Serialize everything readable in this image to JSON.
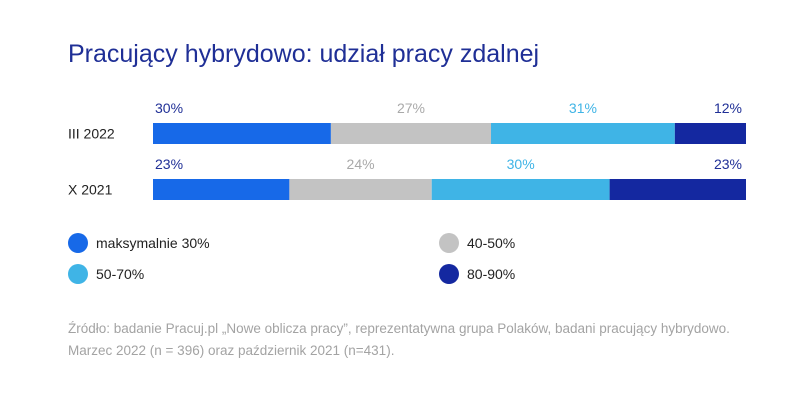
{
  "chart_data": {
    "type": "bar",
    "orientation": "horizontal",
    "stacked": true,
    "title": "Pracujący hybrydowo: udział pracy zdalnej",
    "categories": [
      "III 2022",
      "X 2021"
    ],
    "series": [
      {
        "name": "maksymalnie 30%",
        "color": "#1769e8",
        "label_color": "#1f2f96",
        "values": [
          30,
          23
        ],
        "labels": [
          "30%",
          "23%"
        ]
      },
      {
        "name": "40-50%",
        "color": "#c3c3c3",
        "label_color": "#a9a9a9",
        "values": [
          27,
          24
        ],
        "labels": [
          "27%",
          "24%"
        ]
      },
      {
        "name": "50-70%",
        "color": "#3fb4e6",
        "label_color": "#3fb4e6",
        "values": [
          31,
          30
        ],
        "labels": [
          "31%",
          "30%"
        ]
      },
      {
        "name": "80-90%",
        "color": "#1428a0",
        "label_color": "#1f2f96",
        "values": [
          12,
          23
        ],
        "labels": [
          "12%",
          "23%"
        ]
      }
    ],
    "xlim": [
      0,
      100
    ]
  },
  "legend": [
    {
      "label": "maksymalnie 30%",
      "color": "#1769e8"
    },
    {
      "label": "40-50%",
      "color": "#c3c3c3"
    },
    {
      "label": "50-70%",
      "color": "#3fb4e6"
    },
    {
      "label": "80-90%",
      "color": "#1428a0"
    }
  ],
  "source": {
    "line1": "Źródło: badanie Pracuj.pl „Nowe oblicza pracy”, reprezentatywna grupa Polaków, badani pracujący hybrydowo.",
    "line2": "Marzec 2022 (n = 396) oraz październik 2021 (n=431)."
  }
}
